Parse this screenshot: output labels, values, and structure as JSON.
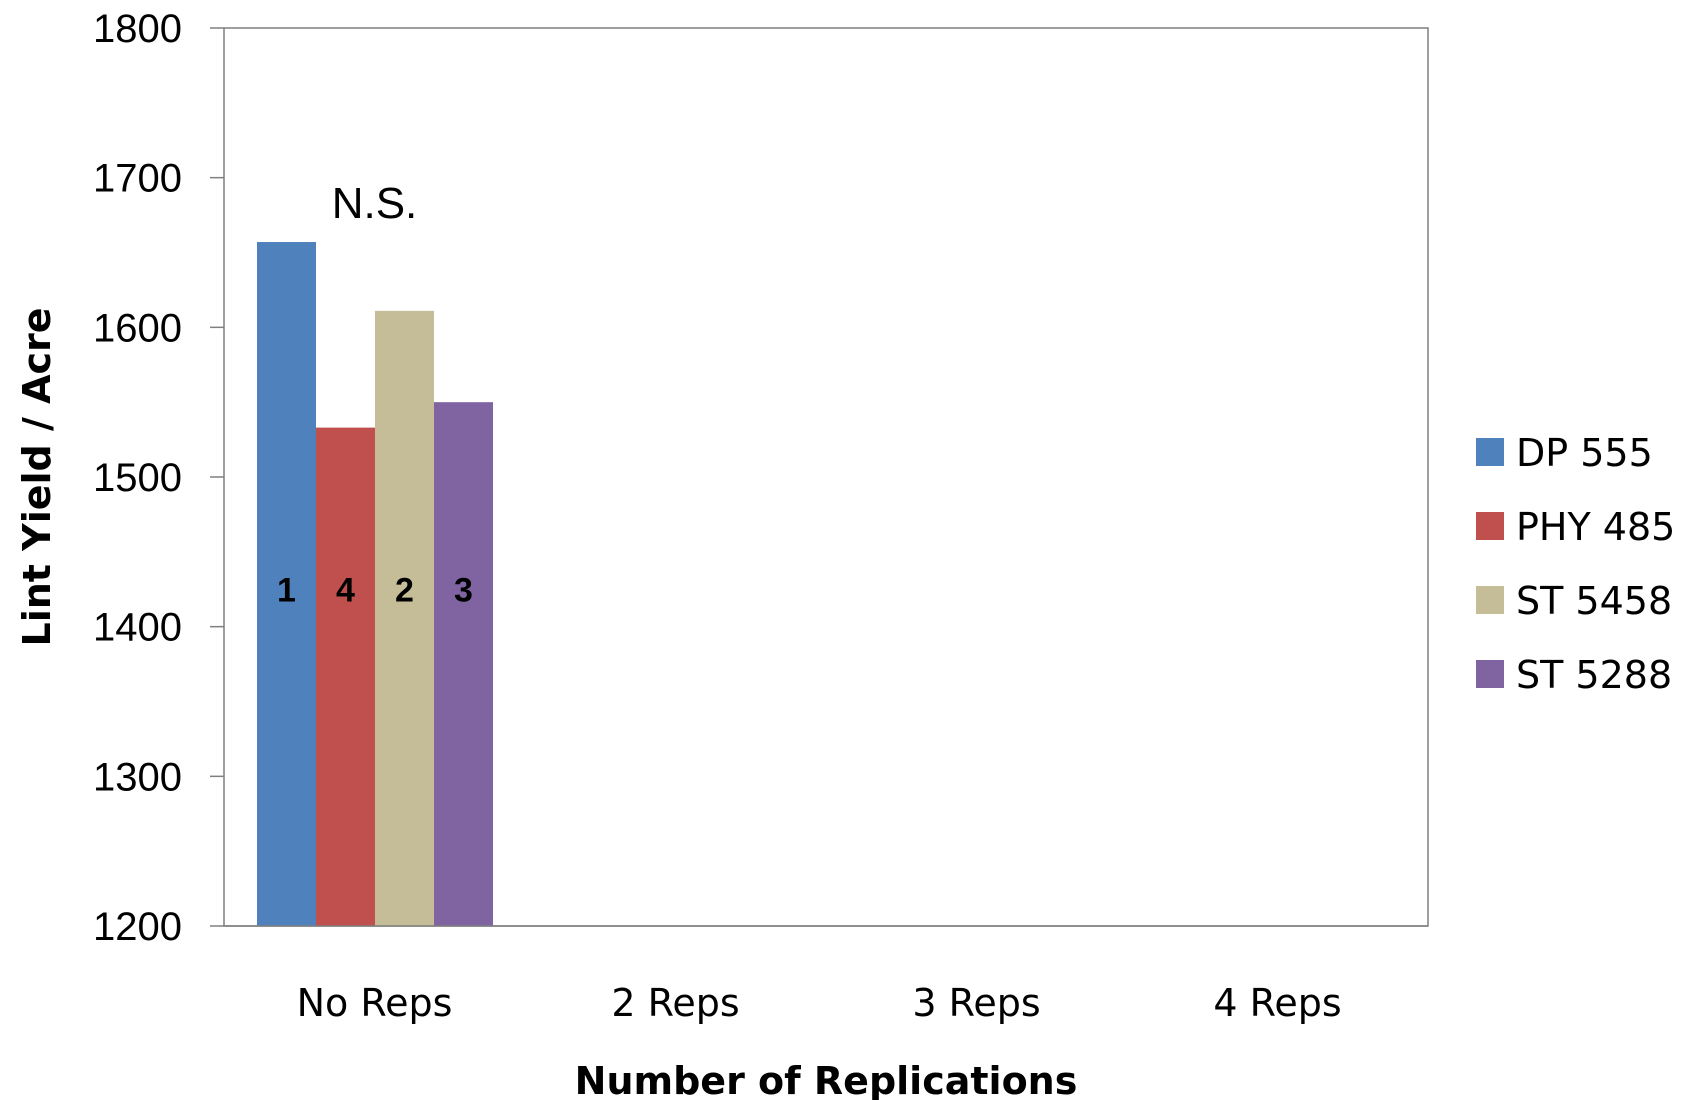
{
  "chart_data": {
    "type": "bar",
    "title": "",
    "xlabel": "Number of Replications",
    "ylabel": "Lint Yield / Acre",
    "ylim": [
      1200,
      1800
    ],
    "yticks": [
      1200,
      1300,
      1400,
      1500,
      1600,
      1700,
      1800
    ],
    "categories": [
      "No Reps",
      "2 Reps",
      "3 Reps",
      "4 Reps"
    ],
    "series": [
      {
        "name": "DP 555",
        "color": "#4f81bd",
        "values": [
          1657,
          null,
          null,
          null
        ],
        "labels": [
          "1",
          null,
          null,
          null
        ]
      },
      {
        "name": "PHY 485",
        "color": "#c0504d",
        "values": [
          1533,
          null,
          null,
          null
        ],
        "labels": [
          "4",
          null,
          null,
          null
        ]
      },
      {
        "name": "ST 5458",
        "color": "#c4bd97",
        "values": [
          1611,
          null,
          null,
          null
        ],
        "labels": [
          "2",
          null,
          null,
          null
        ]
      },
      {
        "name": "ST 5288",
        "color": "#8064a2",
        "values": [
          1550,
          null,
          null,
          null
        ],
        "labels": [
          "3",
          null,
          null,
          null
        ]
      }
    ],
    "annotations": [
      {
        "text": "N.S.",
        "category": "No Reps"
      }
    ],
    "legend": "right",
    "grid": false
  }
}
